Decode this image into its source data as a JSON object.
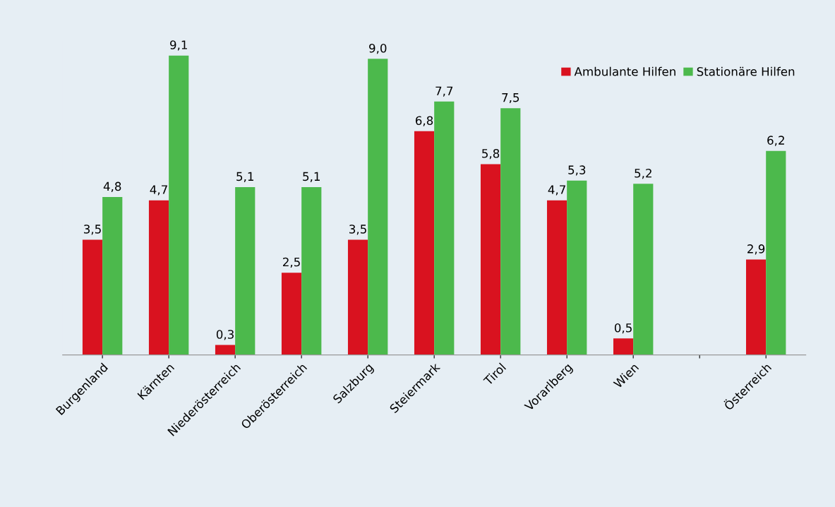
{
  "chart_data": {
    "type": "bar",
    "categories": [
      "Burgenland",
      "Kärnten",
      "Niederösterreich",
      "Oberösterreich",
      "Salzburg",
      "Steiermark",
      "Tirol",
      "Vorarlberg",
      "Wien",
      null,
      "Österreich"
    ],
    "series": [
      {
        "name": "Ambulante Hilfen",
        "color": "#d9121f",
        "values": [
          3.5,
          4.7,
          0.3,
          2.5,
          3.5,
          6.8,
          5.8,
          4.7,
          0.5,
          null,
          2.9
        ],
        "value_labels": [
          "3,5",
          "4,7",
          "0,3",
          "2,5",
          "3,5",
          "6,8",
          "5,8",
          "4,7",
          "0,5",
          null,
          "2,9"
        ]
      },
      {
        "name": "Stationäre Hilfen",
        "color": "#4cb94c",
        "values": [
          4.8,
          9.1,
          5.1,
          5.1,
          9.0,
          7.7,
          7.5,
          5.3,
          5.2,
          null,
          6.2
        ],
        "value_labels": [
          "4,8",
          "9,1",
          "5,1",
          "5,1",
          "9,0",
          "7,7",
          "7,5",
          "5,3",
          "5,2",
          null,
          "6,2"
        ]
      }
    ],
    "legend": "top right",
    "grid": false,
    "tick_labels": "x"
  }
}
